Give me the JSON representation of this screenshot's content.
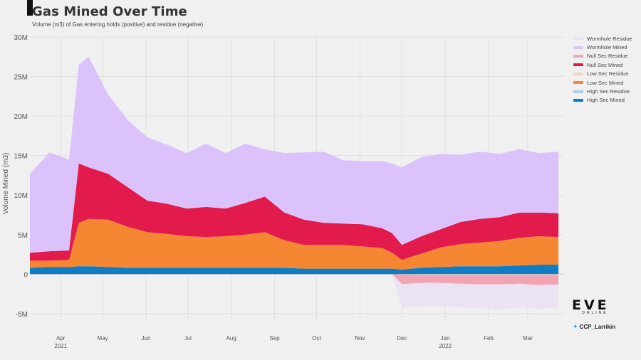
{
  "title": "Gas Mined Over Time",
  "subtitle": "Volume (m3) of Gas entering holds (positive) and residue (negative)",
  "branding": {
    "logo_text": "EVE",
    "logo_subtext": "ONLINE",
    "twitter_handle": "CCP_Larrikin"
  },
  "colors": {
    "wormhole_residue": "#ebe3f4",
    "wormhole_mined": "#dcc2fb",
    "null_residue": "#f0a4b4",
    "null_mined": "#e31a4c",
    "low_residue": "#f5d5bd",
    "low_mined": "#f58732",
    "high_residue": "#a9cde8",
    "high_mined": "#0f7dc6",
    "background": "#f0f0f0",
    "grid": "#e0e0e0"
  },
  "chart_data": {
    "type": "area",
    "stacked": true,
    "title": "Gas Mined Over Time",
    "subtitle": "Volume (m3) of Gas entering holds (positive) and residue (negative)",
    "ylabel": "Volume Mined (m3)",
    "xlabel": "",
    "ylim": [
      -6000000,
      30000000
    ],
    "yticks": [
      -5000000,
      0,
      5000000,
      10000000,
      15000000,
      20000000,
      25000000,
      30000000
    ],
    "ytick_labels": [
      "-5M",
      "0",
      "5M",
      "10M",
      "15M",
      "20M",
      "25M",
      "30M"
    ],
    "xlim": [
      "2021-03-10",
      "2022-03-27"
    ],
    "xticks": [
      "2021-04-01",
      "2021-05-01",
      "2021-06-01",
      "2021-07-01",
      "2021-08-01",
      "2021-09-01",
      "2021-10-01",
      "2021-11-01",
      "2021-12-01",
      "2022-01-01",
      "2022-02-01",
      "2022-03-01"
    ],
    "xtick_labels": [
      "Apr",
      "May",
      "Jun",
      "Jul",
      "Aug",
      "Sep",
      "Oct",
      "Nov",
      "Dec",
      "Jan",
      "Feb",
      "Mar"
    ],
    "xtick_sublabels": {
      "2021-04-01": "2021",
      "2022-01-01": "2022"
    },
    "grid": true,
    "legend_position": "right",
    "x": [
      "2021-03-10",
      "2021-03-24",
      "2021-04-07",
      "2021-04-14",
      "2021-04-21",
      "2021-05-05",
      "2021-05-19",
      "2021-06-02",
      "2021-06-16",
      "2021-06-30",
      "2021-07-14",
      "2021-07-28",
      "2021-08-11",
      "2021-08-25",
      "2021-09-08",
      "2021-09-22",
      "2021-10-06",
      "2021-10-20",
      "2021-11-03",
      "2021-11-17",
      "2021-11-24",
      "2021-12-01",
      "2021-12-15",
      "2021-12-29",
      "2022-01-12",
      "2022-01-26",
      "2022-02-09",
      "2022-02-23",
      "2022-03-09",
      "2022-03-23"
    ],
    "series": [
      {
        "name": "High Sec Mined",
        "stack": "positive",
        "values": [
          0.8,
          0.9,
          0.9,
          1.0,
          1.0,
          0.9,
          0.8,
          0.8,
          0.8,
          0.8,
          0.8,
          0.8,
          0.8,
          0.8,
          0.8,
          0.7,
          0.7,
          0.7,
          0.7,
          0.7,
          0.7,
          0.6,
          0.8,
          0.9,
          1.0,
          1.0,
          1.0,
          1.1,
          1.2,
          1.2
        ]
      },
      {
        "name": "Low Sec Mined",
        "stack": "positive",
        "values": [
          0.9,
          0.8,
          0.9,
          5.5,
          6.0,
          6.0,
          5.2,
          4.5,
          4.3,
          4.0,
          3.9,
          4.0,
          4.2,
          4.5,
          3.5,
          3.0,
          3.0,
          3.0,
          2.8,
          2.6,
          2.0,
          1.2,
          1.8,
          2.5,
          2.8,
          3.0,
          3.2,
          3.5,
          3.6,
          3.5
        ]
      },
      {
        "name": "Low Sec Residue",
        "stack": "negative",
        "values": [
          0,
          0,
          0,
          0,
          0,
          0,
          0,
          0,
          0,
          0,
          0,
          0,
          0,
          0,
          0,
          0,
          0,
          0,
          0,
          0,
          0,
          0.05,
          0.1,
          0.1,
          0.1,
          0.1,
          0.1,
          0.1,
          0.1,
          0.1
        ]
      },
      {
        "name": "Null Sec Mined",
        "stack": "positive",
        "values": [
          1.0,
          1.2,
          1.2,
          7.5,
          6.5,
          5.8,
          5.0,
          4.0,
          3.8,
          3.5,
          3.8,
          3.5,
          4.0,
          4.5,
          3.5,
          3.2,
          2.8,
          2.7,
          2.8,
          2.5,
          2.5,
          1.9,
          2.2,
          2.3,
          2.8,
          3.0,
          3.0,
          3.2,
          3.0,
          3.0
        ]
      },
      {
        "name": "Null Sec Residue",
        "stack": "negative",
        "values": [
          0,
          0,
          0,
          0,
          0,
          0,
          0,
          0,
          0,
          0,
          0,
          0,
          0,
          0,
          0,
          0,
          0,
          0,
          0,
          0,
          0,
          1.2,
          1.0,
          1.0,
          1.1,
          1.2,
          1.2,
          1.1,
          1.3,
          1.2
        ]
      },
      {
        "name": "Wormhole Mined",
        "stack": "positive",
        "values": [
          10.0,
          12.5,
          11.5,
          12.5,
          14.0,
          10.0,
          8.5,
          8.0,
          7.5,
          7.0,
          8.0,
          7.0,
          7.5,
          6.0,
          7.5,
          8.5,
          9.0,
          8.0,
          8.0,
          8.5,
          8.8,
          9.8,
          10.0,
          9.5,
          8.5,
          8.5,
          8.0,
          8.0,
          7.5,
          7.8
        ]
      },
      {
        "name": "Wormhole Residue",
        "stack": "negative",
        "values": [
          0,
          0,
          0,
          0,
          0,
          0,
          0,
          0,
          0,
          0,
          0,
          0,
          0,
          0,
          0,
          0,
          0,
          0,
          0,
          0,
          0,
          3.0,
          3.0,
          3.0,
          3.0,
          3.0,
          3.2,
          3.0,
          3.0,
          3.0
        ]
      },
      {
        "name": "High Sec Residue",
        "stack": "negative",
        "values": [
          0,
          0,
          0,
          0,
          0,
          0,
          0,
          0,
          0,
          0,
          0,
          0,
          0,
          0,
          0,
          0,
          0,
          0,
          0,
          0,
          0,
          0,
          0,
          0,
          0,
          0,
          0,
          0,
          0,
          0
        ]
      }
    ],
    "values_unit": "millions of m3",
    "legend": [
      "Wormhole Residue",
      "Wormhole Mined",
      "Null Sec Residue",
      "Null Sec Mined",
      "Low Sec Residue",
      "Low Sec Mined",
      "High Sec Residue",
      "High Sec Mined"
    ]
  }
}
